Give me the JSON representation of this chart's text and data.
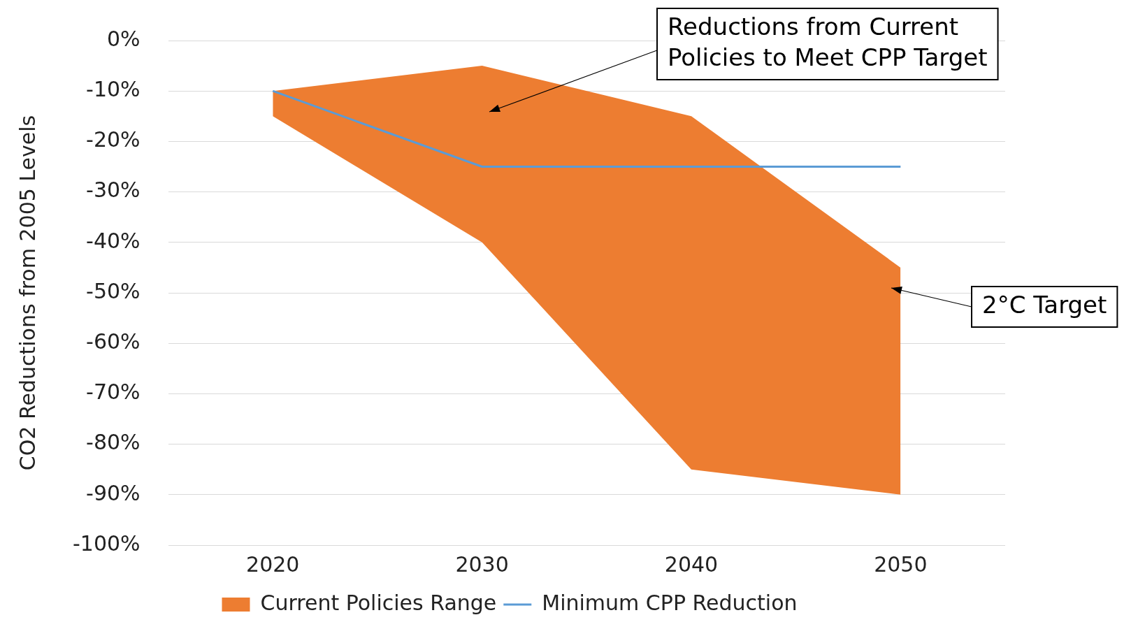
{
  "chart_data": {
    "type": "area",
    "ylabel": "CO2 Reductions from 2005 Levels",
    "categories": [
      "2020",
      "2030",
      "2040",
      "2050"
    ],
    "series": [
      {
        "name": "Current Policies Range",
        "type": "area",
        "color": "#ed7d31",
        "values": [
          null,
          null,
          null,
          null
        ],
        "lower": [
          -15,
          -40,
          -85,
          -90
        ],
        "upper": [
          -10,
          -5,
          -15,
          -45
        ]
      },
      {
        "name": "Minimum CPP Reduction",
        "type": "line",
        "color": "#5b9bd5",
        "values": [
          -10,
          -25,
          -25,
          -25
        ]
      }
    ],
    "ylim": [
      -100,
      0
    ],
    "yticks": [
      {
        "value": 0,
        "label": "0%"
      },
      {
        "value": -10,
        "label": "-10%"
      },
      {
        "value": -20,
        "label": "-20%"
      },
      {
        "value": -30,
        "label": "-30%"
      },
      {
        "value": -40,
        "label": "-40%"
      },
      {
        "value": -50,
        "label": "-50%"
      },
      {
        "value": -60,
        "label": "-60%"
      },
      {
        "value": -70,
        "label": "-70%"
      },
      {
        "value": -80,
        "label": "-80%"
      },
      {
        "value": -90,
        "label": "-90%"
      },
      {
        "value": -100,
        "label": "-100%"
      }
    ],
    "grid": "y",
    "legend": "bottom",
    "marker": "none",
    "annotations": [
      "Reductions from Current Policies to Meet CPP Target",
      "2°C Target"
    ]
  }
}
